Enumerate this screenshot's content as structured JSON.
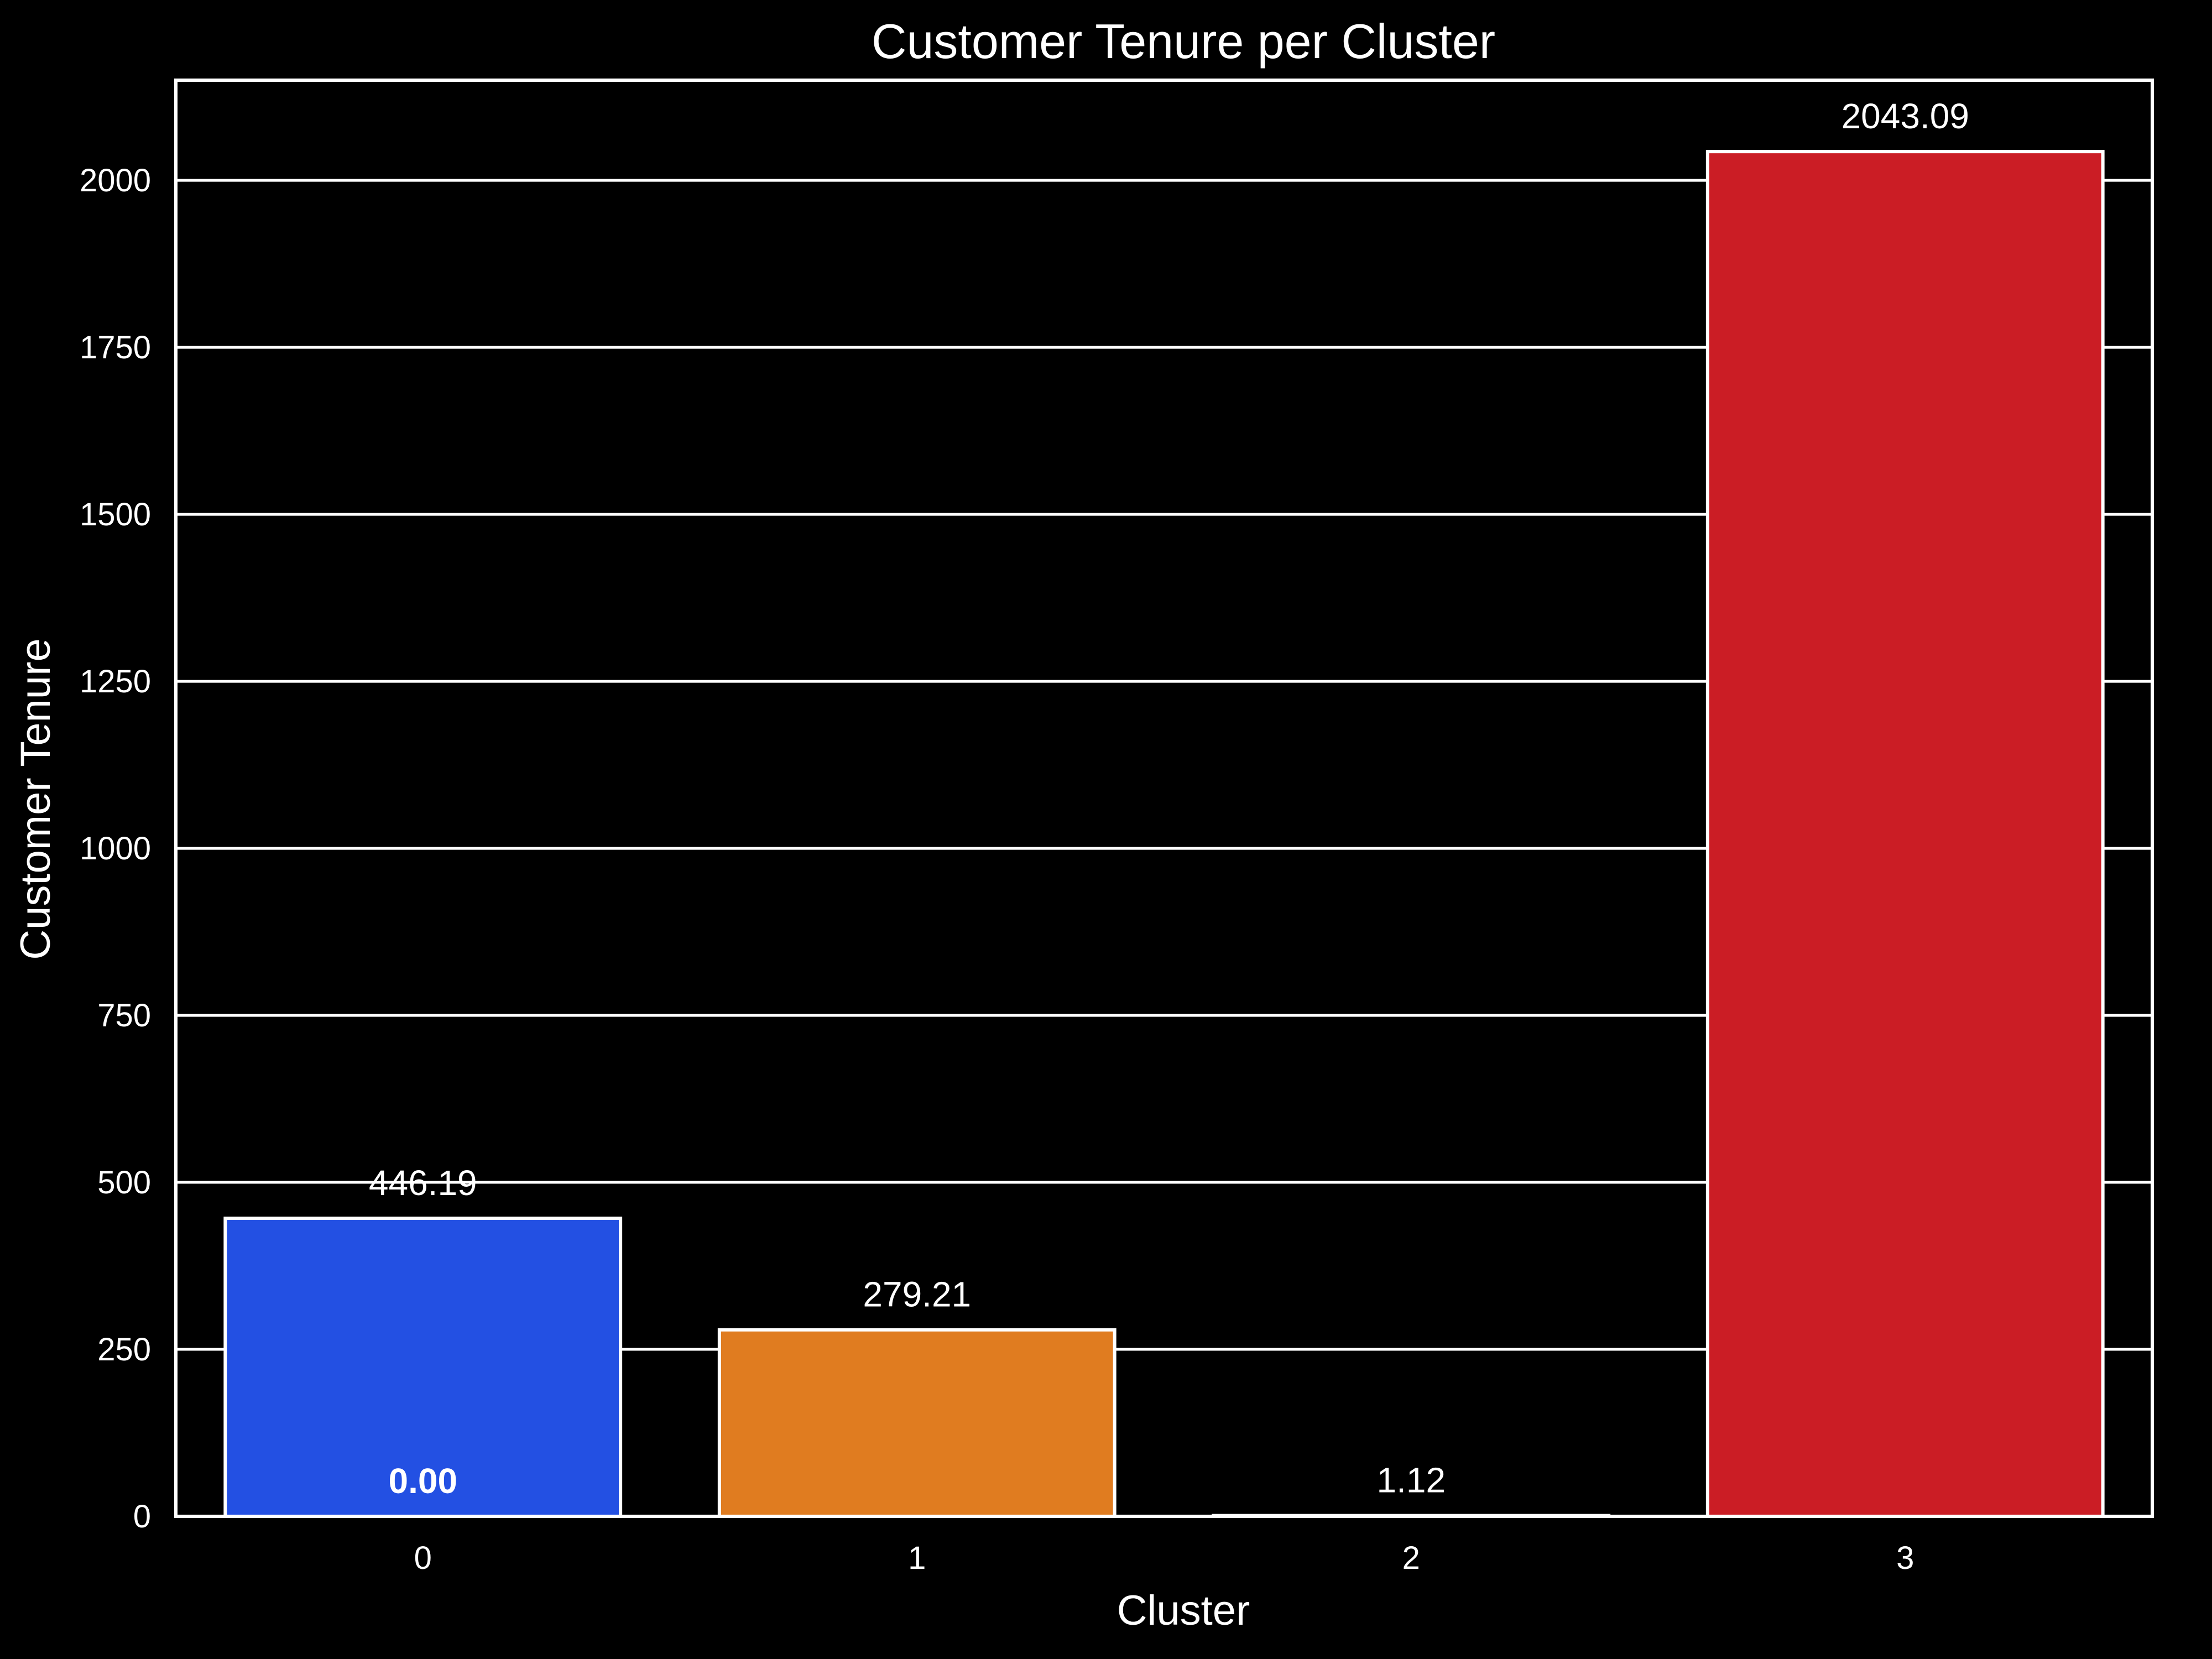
{
  "chart_data": {
    "type": "bar",
    "title": "Customer Tenure per Cluster",
    "xlabel": "Cluster",
    "ylabel": "Customer Tenure",
    "categories": [
      "0",
      "1",
      "2",
      "3"
    ],
    "values": [
      446.19,
      279.21,
      1.12,
      2043.09
    ],
    "data_labels": [
      "446.19",
      "279.21",
      "1.12",
      "2043.09"
    ],
    "extra_annotations": [
      {
        "category": "0",
        "value": 0,
        "label": "0.00"
      }
    ],
    "bar_colors": [
      "#2350e3",
      "#e07c20",
      "#1aa04a",
      "#cb1d25"
    ],
    "ylim": [
      0,
      2150
    ],
    "yticks": [
      0,
      250,
      500,
      750,
      1000,
      1250,
      1500,
      1750,
      2000
    ],
    "ytick_labels": [
      "0",
      "250",
      "500",
      "750",
      "1000",
      "1250",
      "1500",
      "1750",
      "2000"
    ],
    "grid": "horizontal",
    "background": "#000000"
  }
}
